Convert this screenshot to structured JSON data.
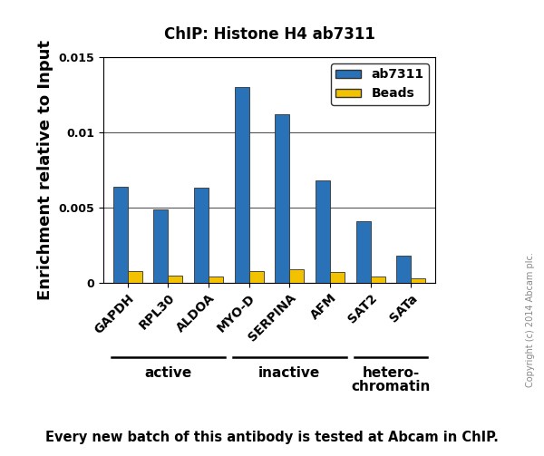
{
  "chart_data": {
    "type": "bar",
    "title": "ChIP: Histone H4 ab7311",
    "y_label": "Enrichment relative to Input",
    "categories": [
      "GAPDH",
      "RPL30",
      "ALDOA",
      "MYO-D",
      "SERPINA",
      "AFM",
      "SAT2",
      "SATa"
    ],
    "series": [
      {
        "name": "ab7311",
        "color": "#2a72b8",
        "values": [
          0.0064,
          0.0049,
          0.0063,
          0.013,
          0.0112,
          0.0068,
          0.0041,
          0.0018
        ]
      },
      {
        "name": "Beads",
        "color": "#f2c200",
        "values": [
          0.0008,
          0.0005,
          0.0004,
          0.0008,
          0.0009,
          0.0007,
          0.0004,
          0.0003
        ]
      }
    ],
    "ylim": [
      0,
      0.015
    ],
    "yticks": [
      0,
      0.005,
      0.01,
      0.015
    ],
    "grid": true,
    "legend": "upper right",
    "groups": [
      {
        "label": "active",
        "categories": [
          "GAPDH",
          "RPL30",
          "ALDOA"
        ]
      },
      {
        "label": "inactive",
        "categories": [
          "MYO-D",
          "SERPINA",
          "AFM"
        ]
      },
      {
        "label": "hetero-\nchromatin",
        "categories": [
          "SAT2",
          "SATa"
        ]
      }
    ],
    "footer": "Every new batch of this antibody is tested at Abcam in ChIP.",
    "copyright": "Copyright (c) 2014 Abcam plc."
  }
}
